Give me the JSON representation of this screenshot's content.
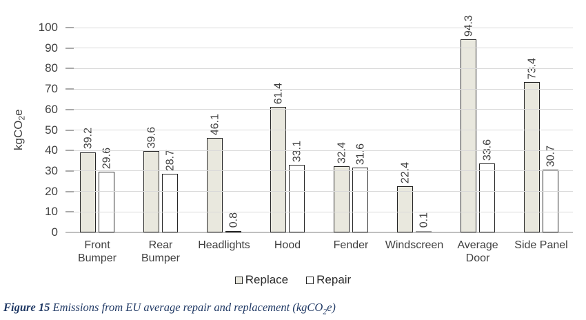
{
  "chart_data": {
    "type": "bar",
    "title": "",
    "categories": [
      "Front Bumper",
      "Rear Bumper",
      "Headlights",
      "Hood",
      "Fender",
      "Windscreen",
      "Average Door",
      "Side Panel"
    ],
    "category_lines": [
      [
        "Front",
        "Bumper"
      ],
      [
        "Rear",
        "Bumper"
      ],
      [
        "Headlights"
      ],
      [
        "Hood"
      ],
      [
        "Fender"
      ],
      [
        "Windscreen"
      ],
      [
        "Average",
        "Door"
      ],
      [
        "Side Panel"
      ]
    ],
    "series": [
      {
        "name": "Replace",
        "values": [
          39.2,
          39.6,
          46.1,
          61.4,
          32.4,
          22.4,
          94.3,
          73.4
        ],
        "fill": "#e9e8de"
      },
      {
        "name": "Repair",
        "values": [
          29.6,
          28.7,
          0.8,
          33.1,
          31.6,
          0.1,
          33.6,
          30.7
        ],
        "fill": "#ffffff"
      }
    ],
    "ylabel": {
      "pre": "kgCO",
      "sub": "2",
      "post": "e"
    },
    "ylim": [
      0,
      100
    ],
    "ytick_step": 10,
    "grid": "horizontal",
    "value_labels": "rotated-90",
    "legend_position": "bottom",
    "colors": {
      "bar_border": "#262626",
      "gridline": "#d9d9d9",
      "axis_line": "#bfbfbf",
      "text": "#3f3f3f"
    }
  },
  "legend": {
    "replace_label": "Replace",
    "repair_label": "Repair"
  },
  "caption": {
    "label": "Figure 15",
    "body": " Emissions from EU average repair and replacement (kgCO",
    "sub": "2",
    "tail": "e)",
    "color": "#1f3864"
  }
}
